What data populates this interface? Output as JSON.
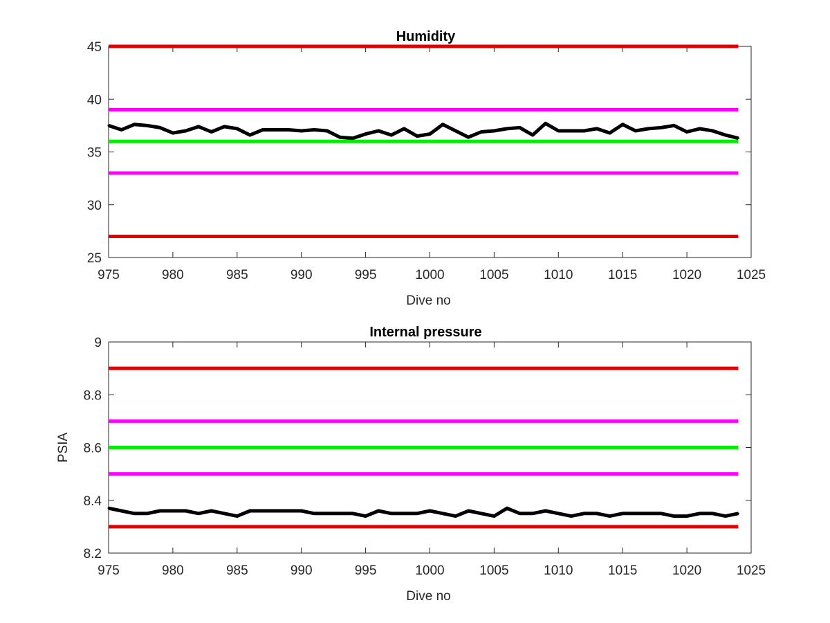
{
  "chart_data": [
    {
      "type": "line",
      "title": "Humidity",
      "xlabel": "Dive no",
      "ylabel": "",
      "xlim": [
        975,
        1025
      ],
      "ylim": [
        25,
        45
      ],
      "xticks": [
        975,
        980,
        985,
        990,
        995,
        1000,
        1005,
        1010,
        1015,
        1020,
        1025
      ],
      "yticks": [
        25,
        30,
        35,
        40,
        45
      ],
      "grid": false,
      "reference_lines": [
        {
          "y": 45,
          "color": "#e00000"
        },
        {
          "y": 39,
          "color": "#ff00ff"
        },
        {
          "y": 36,
          "color": "#00ee00"
        },
        {
          "y": 33,
          "color": "#ff00ff"
        },
        {
          "y": 27,
          "color": "#e00000"
        }
      ],
      "series": [
        {
          "color": "#000000",
          "x": [
            975,
            976,
            977,
            978,
            979,
            980,
            981,
            982,
            983,
            984,
            985,
            986,
            987,
            988,
            989,
            990,
            991,
            992,
            993,
            994,
            995,
            996,
            997,
            998,
            999,
            1000,
            1001,
            1002,
            1003,
            1004,
            1005,
            1006,
            1007,
            1008,
            1009,
            1010,
            1011,
            1012,
            1013,
            1014,
            1015,
            1016,
            1017,
            1018,
            1019,
            1020,
            1021,
            1022,
            1023,
            1024
          ],
          "values": [
            37.5,
            37.1,
            37.6,
            37.5,
            37.3,
            36.8,
            37.0,
            37.4,
            36.9,
            37.4,
            37.2,
            36.6,
            37.1,
            37.1,
            37.1,
            37.0,
            37.1,
            37.0,
            36.4,
            36.3,
            36.7,
            37.0,
            36.6,
            37.2,
            36.5,
            36.7,
            37.6,
            37.0,
            36.4,
            36.9,
            37.0,
            37.2,
            37.3,
            36.6,
            37.7,
            37.0,
            37.0,
            37.0,
            37.2,
            36.8,
            37.6,
            37.0,
            37.2,
            37.3,
            37.5,
            36.9,
            37.2,
            37.0,
            36.6,
            36.3
          ]
        }
      ]
    },
    {
      "type": "line",
      "title": "Internal pressure",
      "xlabel": "Dive no",
      "ylabel": "PSIA",
      "xlim": [
        975,
        1025
      ],
      "ylim": [
        8.2,
        9
      ],
      "xticks": [
        975,
        980,
        985,
        990,
        995,
        1000,
        1005,
        1010,
        1015,
        1020,
        1025
      ],
      "yticks": [
        "8.2",
        "8.4",
        "8.6",
        "8.8",
        "9"
      ],
      "grid": false,
      "reference_lines": [
        {
          "y": 8.9,
          "color": "#e00000"
        },
        {
          "y": 8.7,
          "color": "#ff00ff"
        },
        {
          "y": 8.6,
          "color": "#00ee00"
        },
        {
          "y": 8.5,
          "color": "#ff00ff"
        },
        {
          "y": 8.3,
          "color": "#e00000"
        }
      ],
      "series": [
        {
          "color": "#000000",
          "x": [
            975,
            976,
            977,
            978,
            979,
            980,
            981,
            982,
            983,
            984,
            985,
            986,
            987,
            988,
            989,
            990,
            991,
            992,
            993,
            994,
            995,
            996,
            997,
            998,
            999,
            1000,
            1001,
            1002,
            1003,
            1004,
            1005,
            1006,
            1007,
            1008,
            1009,
            1010,
            1011,
            1012,
            1013,
            1014,
            1015,
            1016,
            1017,
            1018,
            1019,
            1020,
            1021,
            1022,
            1023,
            1024
          ],
          "values": [
            8.37,
            8.36,
            8.35,
            8.35,
            8.36,
            8.36,
            8.36,
            8.35,
            8.36,
            8.35,
            8.34,
            8.36,
            8.36,
            8.36,
            8.36,
            8.36,
            8.35,
            8.35,
            8.35,
            8.35,
            8.34,
            8.36,
            8.35,
            8.35,
            8.35,
            8.36,
            8.35,
            8.34,
            8.36,
            8.35,
            8.34,
            8.37,
            8.35,
            8.35,
            8.36,
            8.35,
            8.34,
            8.35,
            8.35,
            8.34,
            8.35,
            8.35,
            8.35,
            8.35,
            8.34,
            8.34,
            8.35,
            8.35,
            8.34,
            8.35
          ]
        }
      ]
    }
  ]
}
